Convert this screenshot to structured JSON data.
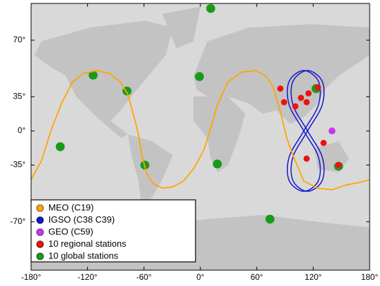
{
  "chart_data": {
    "type": "map",
    "projection": "mercator",
    "xlim": [
      -180,
      180
    ],
    "ylim": [
      -82,
      80
    ],
    "xticks": [
      {
        "value": -180,
        "label": "-180°"
      },
      {
        "value": -120,
        "label": "-120°"
      },
      {
        "value": -60,
        "label": "-60°"
      },
      {
        "value": 0,
        "label": "0°"
      },
      {
        "value": 60,
        "label": "60°"
      },
      {
        "value": 120,
        "label": "120°"
      },
      {
        "value": 180,
        "label": "180°"
      }
    ],
    "yticks": [
      {
        "value": -70,
        "label": "-70°"
      },
      {
        "value": -35,
        "label": "-35°"
      },
      {
        "value": 0,
        "label": "0°"
      },
      {
        "value": 35,
        "label": "35°"
      },
      {
        "value": 70,
        "label": "70°"
      }
    ],
    "legend": "lower left",
    "series": [
      {
        "name": "MEO (C19)",
        "color": "#ffa500",
        "type": "line",
        "x": [
          -180,
          -169,
          -158,
          -147,
          -136,
          -125,
          -110,
          -96,
          -85,
          -77,
          -71,
          -66,
          -62,
          -57,
          -50,
          -40,
          -29,
          -18,
          -7,
          4,
          11,
          18,
          29,
          44,
          59,
          70,
          77,
          85,
          92,
          99,
          110,
          125,
          140,
          154,
          169,
          180
        ],
        "y": [
          -47,
          -31,
          3,
          30,
          47,
          53,
          55,
          53,
          47,
          37,
          17,
          -3,
          -27,
          -42,
          -50,
          -53,
          -52,
          -48,
          -38,
          -20,
          3,
          27,
          47,
          54,
          55,
          51,
          44,
          21,
          -8,
          -27,
          -48,
          -53,
          -54,
          -51,
          -49,
          -47
        ]
      },
      {
        "name": "IGSO (C38 C39)",
        "color": "#1515d0",
        "type": "loop",
        "tracks": [
          {
            "x": [
              110,
              125.6,
              125.6,
              110,
              94.4,
              94.4,
              110,
              125.6,
              125.6,
              110,
              94.4,
              94.4
            ],
            "y": [
              0,
              27.5,
              47.6,
              55,
              47.6,
              27.5,
              0,
              -27.5,
              -47.6,
              -55,
              -47.6,
              -27.5
            ]
          },
          {
            "x": [
              114,
              129.6,
              129.6,
              114,
              98.4,
              98.4,
              114,
              129.6,
              129.6,
              114,
              98.4,
              98.4
            ],
            "y": [
              0,
              27.5,
              47.6,
              55,
              47.6,
              27.5,
              0,
              -27.5,
              -47.6,
              -55,
              -47.6,
              -27.5
            ]
          }
        ]
      },
      {
        "name": "GEO (C59)",
        "color": "#cc33ee",
        "type": "scatter",
        "x": [
          140
        ],
        "y": [
          0
        ]
      },
      {
        "name": "10 regional stations",
        "color": "#ee1111",
        "type": "scatter",
        "x": [
          85,
          89,
          115,
          107,
          113,
          101,
          125,
          131,
          113,
          147
        ],
        "y": [
          42,
          30,
          38,
          34,
          30,
          26,
          43,
          -13,
          -29,
          -35
        ]
      },
      {
        "name": "10 global stations",
        "color": "#1a9a1a",
        "type": "scatter",
        "x": [
          11,
          -114,
          -78,
          -149,
          -59,
          -1,
          18,
          74,
          123,
          147
        ],
        "y": [
          79,
          52,
          40,
          -17,
          -35,
          51,
          -34,
          -69,
          42,
          -36
        ]
      }
    ]
  }
}
